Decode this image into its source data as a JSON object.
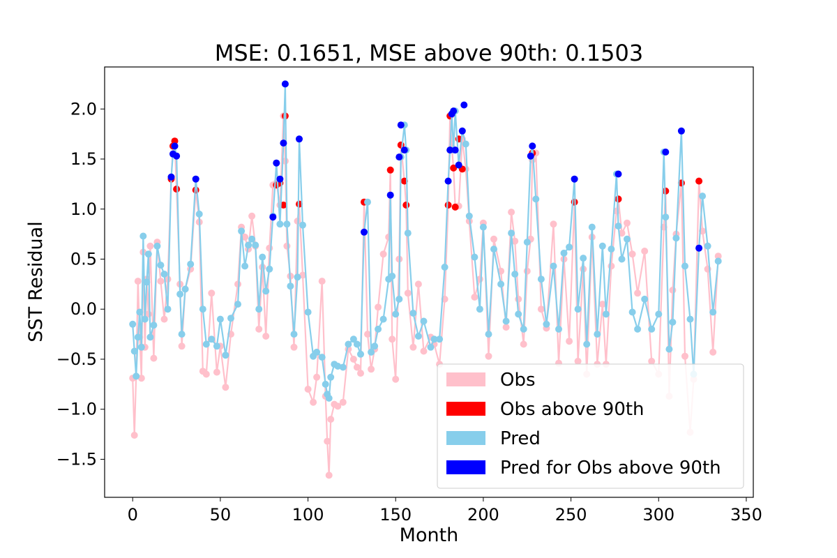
{
  "chart_data": {
    "type": "line",
    "title": "MSE: 0.1651, MSE above 90th: 0.1503",
    "xlabel": "Month",
    "ylabel": "SST Residual",
    "xlim": [
      -16,
      354
    ],
    "ylim": [
      -1.88,
      2.42
    ],
    "x_ticks": [
      {
        "value": 0,
        "label": "0"
      },
      {
        "value": 50,
        "label": "50"
      },
      {
        "value": 100,
        "label": "100"
      },
      {
        "value": 150,
        "label": "150"
      },
      {
        "value": 200,
        "label": "200"
      },
      {
        "value": 250,
        "label": "250"
      },
      {
        "value": 300,
        "label": "300"
      },
      {
        "value": 350,
        "label": "350"
      }
    ],
    "y_ticks": [
      {
        "value": -1.5,
        "label": "−1.5"
      },
      {
        "value": -1.0,
        "label": "−1.0"
      },
      {
        "value": -0.5,
        "label": "−0.5"
      },
      {
        "value": 0.0,
        "label": "0.0"
      },
      {
        "value": 0.5,
        "label": "0.5"
      },
      {
        "value": 1.0,
        "label": "1.0"
      },
      {
        "value": 1.5,
        "label": "1.5"
      },
      {
        "value": 2.0,
        "label": "2.0"
      }
    ],
    "grid": false,
    "legend_position": "lower-right",
    "colors": {
      "obs": "#ffc0cb",
      "obs_above_90th": "#ff0000",
      "pred": "#87ceeb",
      "pred_for_obs_above_90th": "#0000ff"
    },
    "series": [
      {
        "name": "Obs",
        "x": [
          0,
          1,
          2,
          3,
          4,
          5,
          6,
          7,
          8,
          9,
          10,
          12,
          14,
          16,
          18,
          20,
          22,
          23,
          24,
          25,
          27,
          28,
          30,
          33,
          36,
          38,
          40,
          42,
          45,
          48,
          50,
          53,
          56,
          60,
          62,
          64,
          66,
          68,
          70,
          72,
          74,
          76,
          78,
          80,
          82,
          84,
          86,
          87,
          88,
          90,
          92,
          94,
          95,
          97,
          100,
          103,
          105,
          108,
          110,
          111,
          112,
          113,
          115,
          117,
          120,
          123,
          126,
          128,
          130,
          132,
          134,
          136,
          138,
          140,
          143,
          146,
          147,
          148,
          150,
          152,
          153,
          155,
          156,
          157,
          160,
          163,
          166,
          170,
          172,
          175,
          178,
          180,
          181,
          182,
          183,
          184,
          186,
          188,
          190,
          192,
          195,
          198,
          200,
          203,
          206,
          210,
          213,
          216,
          218,
          220,
          223,
          225,
          227,
          228,
          230,
          233,
          236,
          240,
          243,
          246,
          249,
          252,
          254,
          257,
          259,
          262,
          265,
          268,
          270,
          273,
          276,
          277,
          279,
          282,
          285,
          288,
          292,
          296,
          300,
          303,
          304,
          306,
          308,
          310,
          313,
          315,
          318,
          320,
          323,
          325,
          328,
          331,
          334
        ],
        "y": [
          -0.69,
          -1.26,
          -0.67,
          0.28,
          -0.28,
          -0.69,
          0.57,
          -0.38,
          0.3,
          -0.05,
          0.63,
          -0.49,
          0.67,
          0.28,
          -0.1,
          0.3,
          1.3,
          1.63,
          1.68,
          1.2,
          0.25,
          -0.37,
          0.2,
          0.4,
          1.19,
          0.87,
          -0.62,
          -0.65,
          0.16,
          -0.63,
          -0.37,
          -0.78,
          -0.25,
          0.25,
          0.82,
          0.72,
          0.6,
          0.93,
          0.63,
          -0.2,
          0.42,
          -0.27,
          0.61,
          1.24,
          1.26,
          1.04,
          1.93,
          1.48,
          0.63,
          0.33,
          -0.38,
          0.88,
          1.05,
          0.34,
          -0.8,
          -0.93,
          -0.68,
          0.28,
          -0.87,
          -1.32,
          -1.66,
          -1.1,
          -0.95,
          -0.97,
          -0.93,
          -0.4,
          -0.5,
          -0.58,
          -0.64,
          1.07,
          -0.25,
          -0.6,
          -0.4,
          0.02,
          0.55,
          0.72,
          1.39,
          -0.3,
          -0.7,
          0.5,
          1.64,
          1.28,
          1.04,
          0.16,
          -0.38,
          0.25,
          -0.42,
          -0.28,
          -0.35,
          -0.55,
          0.1,
          1.04,
          1.93,
          1.62,
          1.41,
          1.02,
          1.03,
          1.7,
          1.4,
          0.88,
          0.12,
          0.3,
          0.86,
          -0.47,
          0.7,
          0.38,
          -0.18,
          0.97,
          0.68,
          0.1,
          -0.35,
          0.38,
          0.7,
          1.49,
          1.56,
          0.0,
          -0.19,
          0.85,
          -0.54,
          0.5,
          -0.32,
          1.07,
          -0.52,
          0.4,
          -0.65,
          0.72,
          -0.55,
          0.05,
          -0.55,
          0.43,
          0.98,
          1.1,
          0.76,
          0.86,
          0.55,
          0.16,
          0.58,
          -0.52,
          -0.65,
          0.82,
          1.18,
          -0.87,
          0.19,
          0.75,
          1.26,
          -0.47,
          -1.23,
          -0.7,
          1.28,
          0.78,
          0.4,
          -0.43,
          0.53
        ]
      },
      {
        "name": "Pred",
        "x": [
          0,
          1,
          2,
          3,
          4,
          5,
          6,
          7,
          8,
          9,
          10,
          12,
          14,
          16,
          18,
          20,
          22,
          23,
          24,
          25,
          27,
          28,
          30,
          33,
          36,
          38,
          40,
          42,
          45,
          48,
          50,
          53,
          56,
          60,
          62,
          64,
          66,
          68,
          70,
          72,
          74,
          76,
          78,
          80,
          82,
          84,
          86,
          87,
          88,
          90,
          92,
          94,
          95,
          97,
          100,
          103,
          105,
          108,
          110,
          111,
          112,
          113,
          115,
          117,
          120,
          123,
          126,
          128,
          130,
          132,
          134,
          136,
          138,
          140,
          143,
          146,
          147,
          148,
          150,
          152,
          153,
          155,
          156,
          157,
          160,
          163,
          166,
          170,
          172,
          175,
          178,
          180,
          181,
          182,
          183,
          184,
          186,
          188,
          190,
          192,
          195,
          198,
          200,
          203,
          206,
          210,
          213,
          216,
          218,
          220,
          223,
          225,
          227,
          228,
          230,
          233,
          236,
          240,
          243,
          246,
          249,
          252,
          254,
          257,
          259,
          262,
          265,
          268,
          270,
          273,
          276,
          277,
          279,
          282,
          285,
          288,
          292,
          296,
          300,
          303,
          304,
          306,
          308,
          310,
          313,
          315,
          318,
          320,
          323,
          325,
          328,
          331,
          334
        ],
        "y": [
          -0.15,
          -0.42,
          -0.67,
          -0.28,
          -0.03,
          -0.38,
          0.73,
          -0.1,
          0.27,
          0.55,
          -0.28,
          -0.16,
          0.63,
          0.44,
          0.35,
          0.0,
          1.32,
          1.55,
          1.63,
          1.53,
          0.15,
          -0.25,
          0.2,
          0.45,
          1.3,
          0.95,
          0.0,
          -0.35,
          -0.3,
          -0.37,
          -0.1,
          -0.46,
          -0.09,
          0.05,
          0.78,
          0.43,
          0.64,
          0.7,
          0.64,
          0.0,
          0.52,
          0.18,
          0.4,
          0.93,
          1.46,
          0.85,
          1.66,
          2.25,
          0.85,
          0.23,
          -0.25,
          0.32,
          1.7,
          0.84,
          -0.03,
          -0.47,
          -0.43,
          -0.48,
          -0.75,
          -0.85,
          -0.89,
          -0.68,
          -0.55,
          -0.57,
          -0.58,
          -0.35,
          -0.3,
          -0.35,
          -0.45,
          0.77,
          1.07,
          -0.43,
          -0.37,
          -0.2,
          -0.1,
          0.3,
          1.14,
          0.33,
          -0.05,
          0.1,
          1.52,
          1.84,
          1.59,
          0.76,
          -0.04,
          -0.27,
          -0.12,
          -0.38,
          -0.3,
          -0.3,
          0.42,
          1.28,
          1.59,
          1.95,
          1.59,
          1.98,
          1.44,
          1.78,
          1.65,
          0.93,
          0.52,
          0.0,
          0.82,
          -0.25,
          0.6,
          0.25,
          -0.12,
          0.76,
          0.35,
          -0.05,
          -0.2,
          0.67,
          1.53,
          1.63,
          1.1,
          0.3,
          -0.15,
          0.43,
          -0.2,
          0.56,
          0.62,
          1.3,
          0.0,
          0.51,
          -0.35,
          0.82,
          -0.25,
          0.63,
          -0.05,
          0.6,
          1.35,
          0.83,
          0.5,
          0.7,
          -0.03,
          -0.2,
          0.1,
          -0.2,
          -0.05,
          1.57,
          0.92,
          -0.4,
          -0.13,
          0.71,
          1.78,
          0.43,
          -0.1,
          -0.65,
          0.61,
          1.13,
          0.63,
          -0.03,
          0.48
        ]
      },
      {
        "name": "Obs above 90th",
        "x": [
          22,
          23,
          24,
          25,
          36,
          82,
          84,
          86,
          87,
          95,
          132,
          147,
          153,
          155,
          156,
          180,
          181,
          183,
          184,
          186,
          188,
          228,
          252,
          277,
          304,
          313,
          323
        ],
        "y": [
          1.3,
          1.63,
          1.68,
          1.2,
          1.19,
          1.24,
          1.26,
          1.04,
          1.93,
          1.05,
          1.07,
          1.39,
          1.64,
          1.28,
          1.04,
          1.04,
          1.93,
          1.41,
          1.02,
          1.7,
          1.4,
          1.56,
          1.07,
          1.1,
          1.18,
          1.26,
          1.28
        ]
      },
      {
        "name": "Pred for Obs above 90th",
        "x": [
          22,
          23,
          24,
          25,
          36,
          80,
          82,
          84,
          86,
          87,
          95,
          132,
          147,
          152,
          153,
          155,
          180,
          181,
          182,
          183,
          184,
          186,
          188,
          189,
          227,
          228,
          252,
          277,
          304,
          313,
          323
        ],
        "y": [
          1.32,
          1.55,
          1.63,
          1.53,
          1.3,
          0.92,
          1.46,
          1.3,
          1.66,
          2.25,
          1.7,
          0.77,
          1.14,
          1.52,
          1.84,
          1.59,
          1.28,
          1.59,
          1.95,
          1.98,
          1.59,
          1.44,
          1.78,
          2.04,
          1.53,
          1.63,
          1.3,
          1.35,
          1.57,
          1.78,
          0.61
        ]
      }
    ],
    "legend": [
      {
        "label": "Obs",
        "color": "#ffc0cb"
      },
      {
        "label": "Obs above 90th",
        "color": "#ff0000"
      },
      {
        "label": "Pred",
        "color": "#87ceeb"
      },
      {
        "label": "Pred for Obs above 90th",
        "color": "#0000ff"
      }
    ]
  }
}
